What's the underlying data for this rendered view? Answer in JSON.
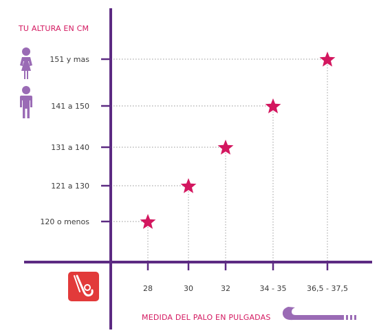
{
  "colors": {
    "axis": "#5c2a82",
    "accent": "#d3175f",
    "icon": "#9a6bb5",
    "guide": "#b8b8b8",
    "badge": "#e23a3a",
    "stick": "#9a6bb5"
  },
  "icons": {
    "female": "female-person-icon",
    "male": "male-person-icon",
    "badge": "hockey-stick-badge-icon",
    "stick": "hockey-stick-icon",
    "marker": "star-icon"
  },
  "chart_data": {
    "type": "scatter",
    "title": "",
    "ylabel": "TU ALTURA EN CM",
    "xlabel": "MEDIDA DEL PALO EN PULGADAS",
    "categories": [
      "28",
      "30",
      "32",
      "34 - 35",
      "36,5 - 37,5"
    ],
    "y_categories": [
      "120 o menos",
      "121 a 130",
      "131 a 140",
      "141 a 150",
      "151 y mas"
    ],
    "points": [
      {
        "x": "28",
        "y": "120 o menos"
      },
      {
        "x": "30",
        "y": "121 a 130"
      },
      {
        "x": "32",
        "y": "131 a 140"
      },
      {
        "x": "34 - 35",
        "y": "141 a 150"
      },
      {
        "x": "36,5 - 37,5",
        "y": "151 y mas"
      }
    ],
    "marker": "star",
    "grid": false
  }
}
